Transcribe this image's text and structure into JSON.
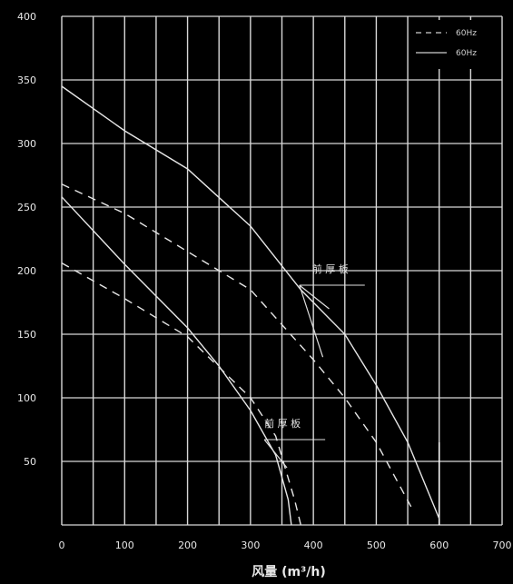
{
  "chart_data": {
    "type": "line",
    "title": "",
    "xlabel": "风量 (m³/h)",
    "ylabel": "",
    "xlim": [
      0,
      700
    ],
    "ylim": [
      0,
      400
    ],
    "x_ticks": [
      0,
      100,
      200,
      300,
      400,
      500,
      600,
      700
    ],
    "y_ticks": [
      50,
      100,
      150,
      200,
      250,
      300,
      350,
      400
    ],
    "grid": true,
    "legend_position": "top-right",
    "legend": [
      {
        "label": "60Hz",
        "style": "dashed"
      },
      {
        "label": "60Hz",
        "style": "solid"
      }
    ],
    "series": [
      {
        "style": "solid",
        "points": [
          [
            0,
            345
          ],
          [
            100,
            310
          ],
          [
            200,
            280
          ],
          [
            300,
            235
          ],
          [
            380,
            185
          ],
          [
            450,
            150
          ],
          [
            500,
            110
          ],
          [
            550,
            65
          ],
          [
            600,
            5
          ]
        ]
      },
      {
        "style": "dashed",
        "points": [
          [
            0,
            268
          ],
          [
            100,
            245
          ],
          [
            200,
            215
          ],
          [
            300,
            185
          ],
          [
            400,
            130
          ],
          [
            450,
            100
          ],
          [
            500,
            65
          ],
          [
            560,
            10
          ]
        ]
      },
      {
        "style": "solid",
        "points": [
          [
            0,
            258
          ],
          [
            100,
            205
          ],
          [
            200,
            155
          ],
          [
            250,
            125
          ],
          [
            300,
            90
          ],
          [
            340,
            55
          ],
          [
            360,
            20
          ],
          [
            365,
            0
          ]
        ]
      },
      {
        "style": "dashed",
        "points": [
          [
            0,
            206
          ],
          [
            100,
            178
          ],
          [
            200,
            148
          ],
          [
            300,
            100
          ],
          [
            340,
            70
          ],
          [
            370,
            20
          ],
          [
            380,
            0
          ]
        ]
      }
    ],
    "annotations": [
      {
        "text": "前 厚 板",
        "x": 450,
        "y": 195
      },
      {
        "text": "前 厚 板",
        "x": 400,
        "y": 75
      }
    ],
    "vertical_markers": [
      600
    ]
  }
}
